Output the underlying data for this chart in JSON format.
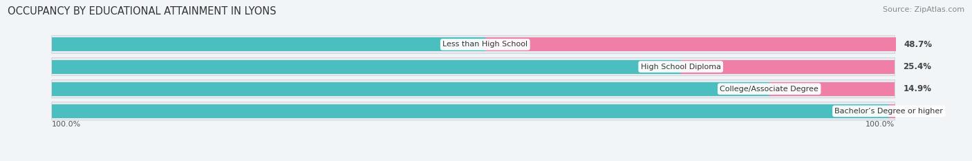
{
  "title": "OCCUPANCY BY EDUCATIONAL ATTAINMENT IN LYONS",
  "source": "Source: ZipAtlas.com",
  "categories": [
    "Less than High School",
    "High School Diploma",
    "College/Associate Degree",
    "Bachelor’s Degree or higher"
  ],
  "owner_values": [
    51.4,
    74.6,
    85.1,
    99.3
  ],
  "renter_values": [
    48.7,
    25.4,
    14.9,
    0.73
  ],
  "owner_color": "#4bbfbf",
  "renter_color": "#f07fa8",
  "bar_height": 0.62,
  "background_color": "#f2f5f8",
  "row_bg_color": "#e4eaf0",
  "label_color_owner_inside": "#ffffff",
  "label_color_owner_outside": "#555555",
  "axis_label_left": "100.0%",
  "axis_label_right": "100.0%",
  "title_fontsize": 10.5,
  "source_fontsize": 8,
  "bar_label_fontsize": 8.5,
  "category_fontsize": 8,
  "legend_fontsize": 9,
  "total_width": 100
}
